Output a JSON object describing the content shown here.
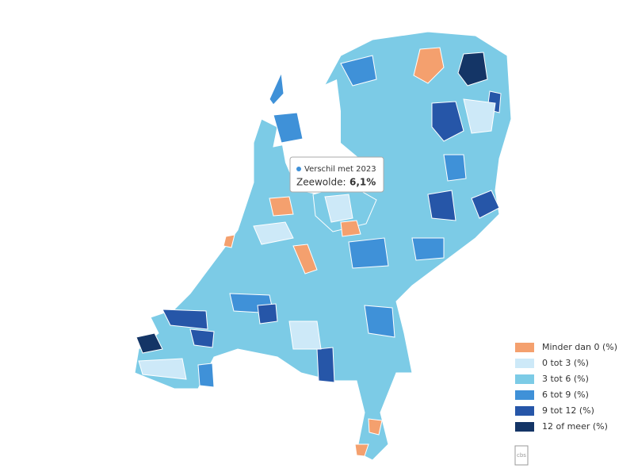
{
  "tooltip": {
    "series": "Verschil met 2023",
    "name": "Zeewolde:",
    "value": "6,1%"
  },
  "legend": [
    {
      "label": "Minder dan 0 (%)",
      "color": "#f4a06e"
    },
    {
      "label": "0 tot 3 (%)",
      "color": "#cde9f8"
    },
    {
      "label": "3 tot 6 (%)",
      "color": "#7ccbe6"
    },
    {
      "label": "6 tot 9 (%)",
      "color": "#3f91d8"
    },
    {
      "label": "9 tot 12 (%)",
      "color": "#2656a8"
    },
    {
      "label": "12 of meer (%)",
      "color": "#143566"
    }
  ],
  "logo": "cbs"
}
